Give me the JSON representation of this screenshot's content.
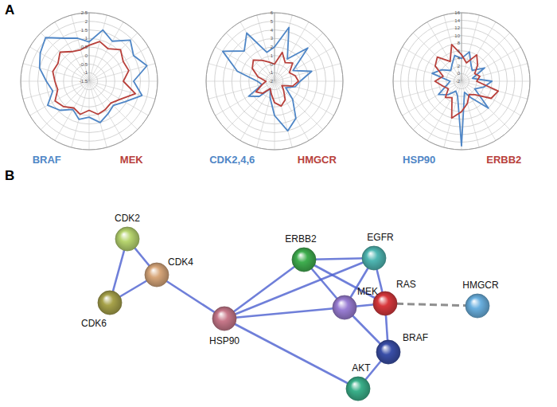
{
  "panel_labels": [
    "A",
    "B"
  ],
  "chart_data": [
    {
      "type": "radar",
      "ylim": [
        -1.5,
        2.5
      ],
      "yticks": [
        -1.5,
        -1,
        -0.5,
        0,
        0.5,
        1,
        1.5,
        2,
        2.5
      ],
      "grid": true,
      "series": [
        {
          "name": "BRAF",
          "color": "#4f86c6",
          "values": [
            0.8,
            1.6,
            1.2,
            1.9,
            1.5,
            2.0,
            1.1,
            1.7,
            0.9,
            0.5,
            0.7,
            1.0,
            0.6,
            0.8,
            0.4,
            0.9,
            1.3,
            0.7,
            1.0,
            1.5,
            1.8,
            2.1,
            1.4,
            1.1
          ]
        },
        {
          "name": "MEK",
          "color": "#b8403b",
          "values": [
            0.6,
            0.9,
            0.7,
            1.1,
            0.8,
            0.9,
            0.5,
            1.3,
            0.6,
            0.3,
            0.4,
            0.5,
            0.2,
            0.5,
            0.3,
            0.6,
            0.8,
            0.4,
            0.5,
            0.7,
            0.6,
            0.9,
            0.5,
            0.4
          ]
        }
      ]
    },
    {
      "type": "radar",
      "ylim": [
        -2,
        6
      ],
      "yticks": [
        -2,
        -1,
        0,
        1,
        2,
        3,
        4,
        5,
        6
      ],
      "grid": true,
      "series": [
        {
          "name": "CDK2,4,6",
          "color": "#4f86c6",
          "values": [
            2,
            4.5,
            1,
            3.5,
            0.5,
            2.5,
            1,
            0.5,
            -0.5,
            1,
            3,
            4,
            2,
            0,
            -1,
            0.5,
            1.5,
            -0.5,
            0,
            2.5,
            5,
            3,
            4.5,
            1.5
          ]
        },
        {
          "name": "HMGCR",
          "color": "#b8403b",
          "values": [
            0,
            1.5,
            0.5,
            1,
            0,
            0.5,
            0.8,
            0.2,
            -1,
            -0.5,
            0.5,
            1,
            0.5,
            -0.5,
            -1,
            0,
            0.5,
            -0.5,
            -1,
            0,
            1,
            1.5,
            0.8,
            0.3
          ]
        }
      ]
    },
    {
      "type": "radar",
      "ylim": [
        -2,
        16
      ],
      "yticks": [
        -2,
        0,
        2,
        4,
        6,
        8,
        10,
        12,
        14,
        16
      ],
      "grid": true,
      "series": [
        {
          "name": "HSP90",
          "color": "#4f86c6",
          "values": [
            4,
            6,
            3,
            2,
            5,
            1,
            6,
            4,
            2,
            8,
            3,
            1,
            15,
            2,
            1,
            3,
            5,
            2,
            1,
            6,
            4,
            2,
            3,
            5
          ]
        },
        {
          "name": "ERBB2",
          "color": "#b8403b",
          "values": [
            5,
            3,
            6,
            4,
            2,
            3,
            2,
            8,
            7,
            3,
            2,
            4,
            6,
            8,
            3,
            4,
            2,
            3,
            5,
            3,
            6,
            7,
            4,
            8
          ]
        }
      ]
    }
  ],
  "network": {
    "nodes": [
      "CDK2",
      "CDK4",
      "CDK6",
      "HSP90",
      "ERBB2",
      "EGFR",
      "RAS",
      "MEK",
      "BRAF",
      "AKT",
      "HMGCR"
    ],
    "edges": [
      {
        "source": "CDK2",
        "target": "CDK4"
      },
      {
        "source": "CDK2",
        "target": "CDK6"
      },
      {
        "source": "CDK4",
        "target": "CDK6"
      },
      {
        "source": "CDK4",
        "target": "HSP90"
      },
      {
        "source": "HSP90",
        "target": "ERBB2"
      },
      {
        "source": "HSP90",
        "target": "EGFR"
      },
      {
        "source": "HSP90",
        "target": "MEK"
      },
      {
        "source": "HSP90",
        "target": "AKT"
      },
      {
        "source": "ERBB2",
        "target": "EGFR"
      },
      {
        "source": "ERBB2",
        "target": "RAS"
      },
      {
        "source": "ERBB2",
        "target": "MEK"
      },
      {
        "source": "EGFR",
        "target": "RAS"
      },
      {
        "source": "EGFR",
        "target": "MEK"
      },
      {
        "source": "RAS",
        "target": "MEK"
      },
      {
        "source": "RAS",
        "target": "BRAF"
      },
      {
        "source": "MEK",
        "target": "BRAF"
      },
      {
        "source": "BRAF",
        "target": "AKT"
      },
      {
        "source": "RAS",
        "target": "HMGCR",
        "line_style": "dashed"
      }
    ]
  }
}
